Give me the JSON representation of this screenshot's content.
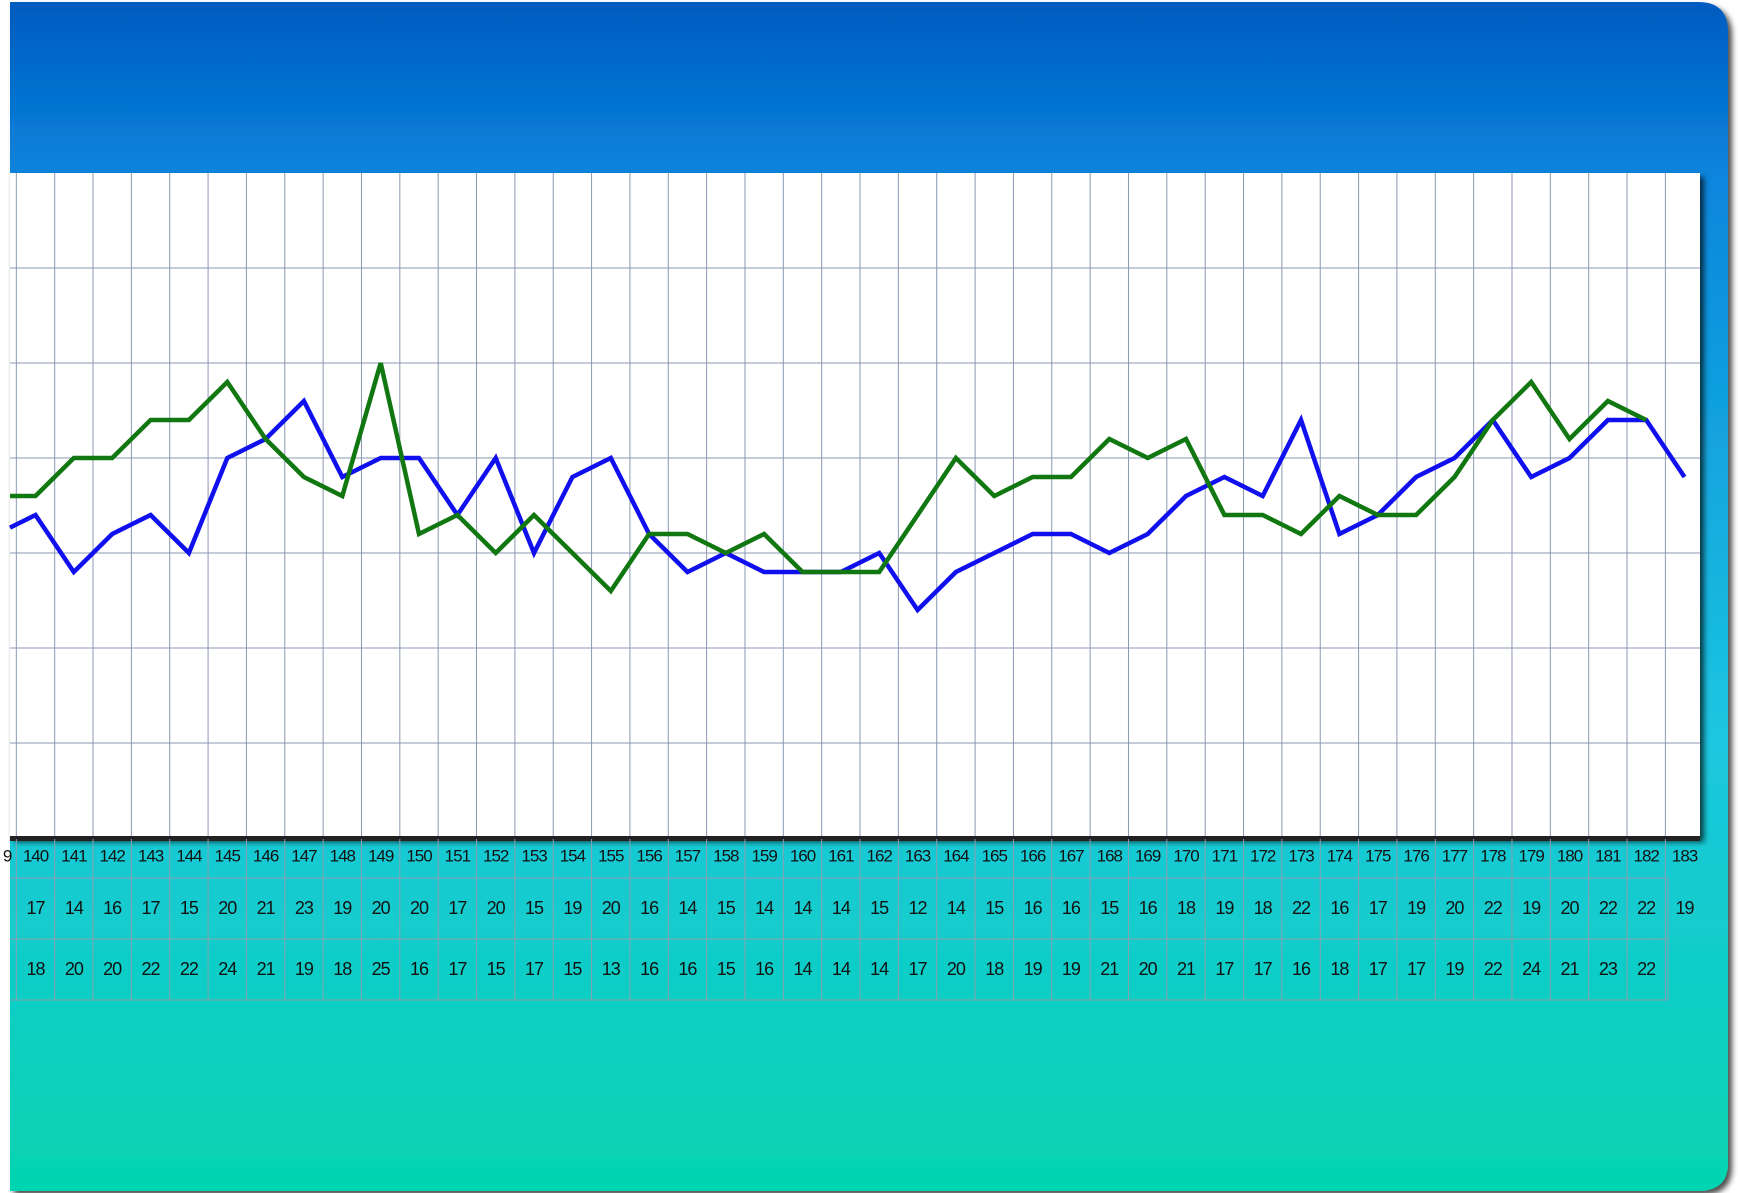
{
  "chart_data": {
    "type": "line",
    "title": "",
    "xlabel": "",
    "ylabel": "",
    "partial_first_label": "9",
    "categories": [
      140,
      141,
      142,
      143,
      144,
      145,
      146,
      147,
      148,
      149,
      150,
      151,
      152,
      153,
      154,
      155,
      156,
      157,
      158,
      159,
      160,
      161,
      162,
      163,
      164,
      165,
      166,
      167,
      168,
      169,
      170,
      171,
      172,
      173,
      174,
      175,
      176,
      177,
      178,
      179,
      180,
      181,
      182,
      183
    ],
    "series": [
      {
        "color": "#1010ee",
        "partial_first_value": 16,
        "values": [
          17,
          14,
          16,
          17,
          15,
          20,
          21,
          23,
          19,
          20,
          20,
          17,
          20,
          15,
          19,
          20,
          16,
          14,
          15,
          14,
          14,
          14,
          15,
          12,
          14,
          15,
          16,
          16,
          15,
          16,
          18,
          19,
          18,
          22,
          16,
          17,
          19,
          20,
          22,
          19,
          20,
          22,
          22,
          19
        ]
      },
      {
        "color": "#117711",
        "partial_first_value": 18,
        "values": [
          18,
          20,
          20,
          22,
          22,
          24,
          21,
          19,
          18,
          25,
          16,
          17,
          15,
          17,
          15,
          13,
          16,
          16,
          15,
          16,
          14,
          14,
          14,
          17,
          20,
          18,
          19,
          19,
          21,
          20,
          21,
          17,
          17,
          16,
          18,
          17,
          17,
          19,
          22,
          24,
          21,
          23,
          22,
          null
        ]
      }
    ],
    "ylim": [
      0,
      35
    ],
    "y_grid_step": 5,
    "grid": true,
    "table_rows": 3
  },
  "colors": {
    "header_top": "#005bbf",
    "header_bottom": "#0a86dd",
    "footer_top": "#1cc6e0",
    "footer_bottom": "#05d4b0",
    "grid_line": "#8a98b4",
    "table_line": "#8aa0b0"
  }
}
